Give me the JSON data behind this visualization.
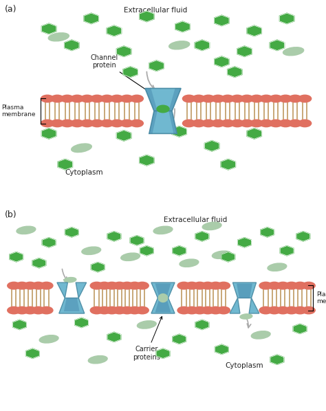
{
  "bg_color": "#ffffff",
  "panel_a_label": "(a)",
  "panel_b_label": "(b)",
  "extracellular_fluid_a": "Extracellular fluid",
  "extracellular_fluid_b": "Extracellular fluid",
  "cytoplasm_a": "Cytoplasm",
  "cytoplasm_b": "Cytoplasm",
  "plasma_membrane_a": "Plasma\nmembrane",
  "plasma_membrane_b": "Plasma\nmembrane",
  "channel_protein_label": "Channel\nprotein",
  "carrier_proteins_label": "Carrier\nproteins",
  "head_color": "#e07060",
  "tail_color": "#c8a878",
  "prot_color": "#70b8d0",
  "prot_edge": "#5090a8",
  "prot_dark_inner": "#3878a0",
  "mol_green": "#44aa44",
  "mol_oval": "#aaccaa",
  "arr_color": "#aaaaaa",
  "txt_color": "#222222"
}
